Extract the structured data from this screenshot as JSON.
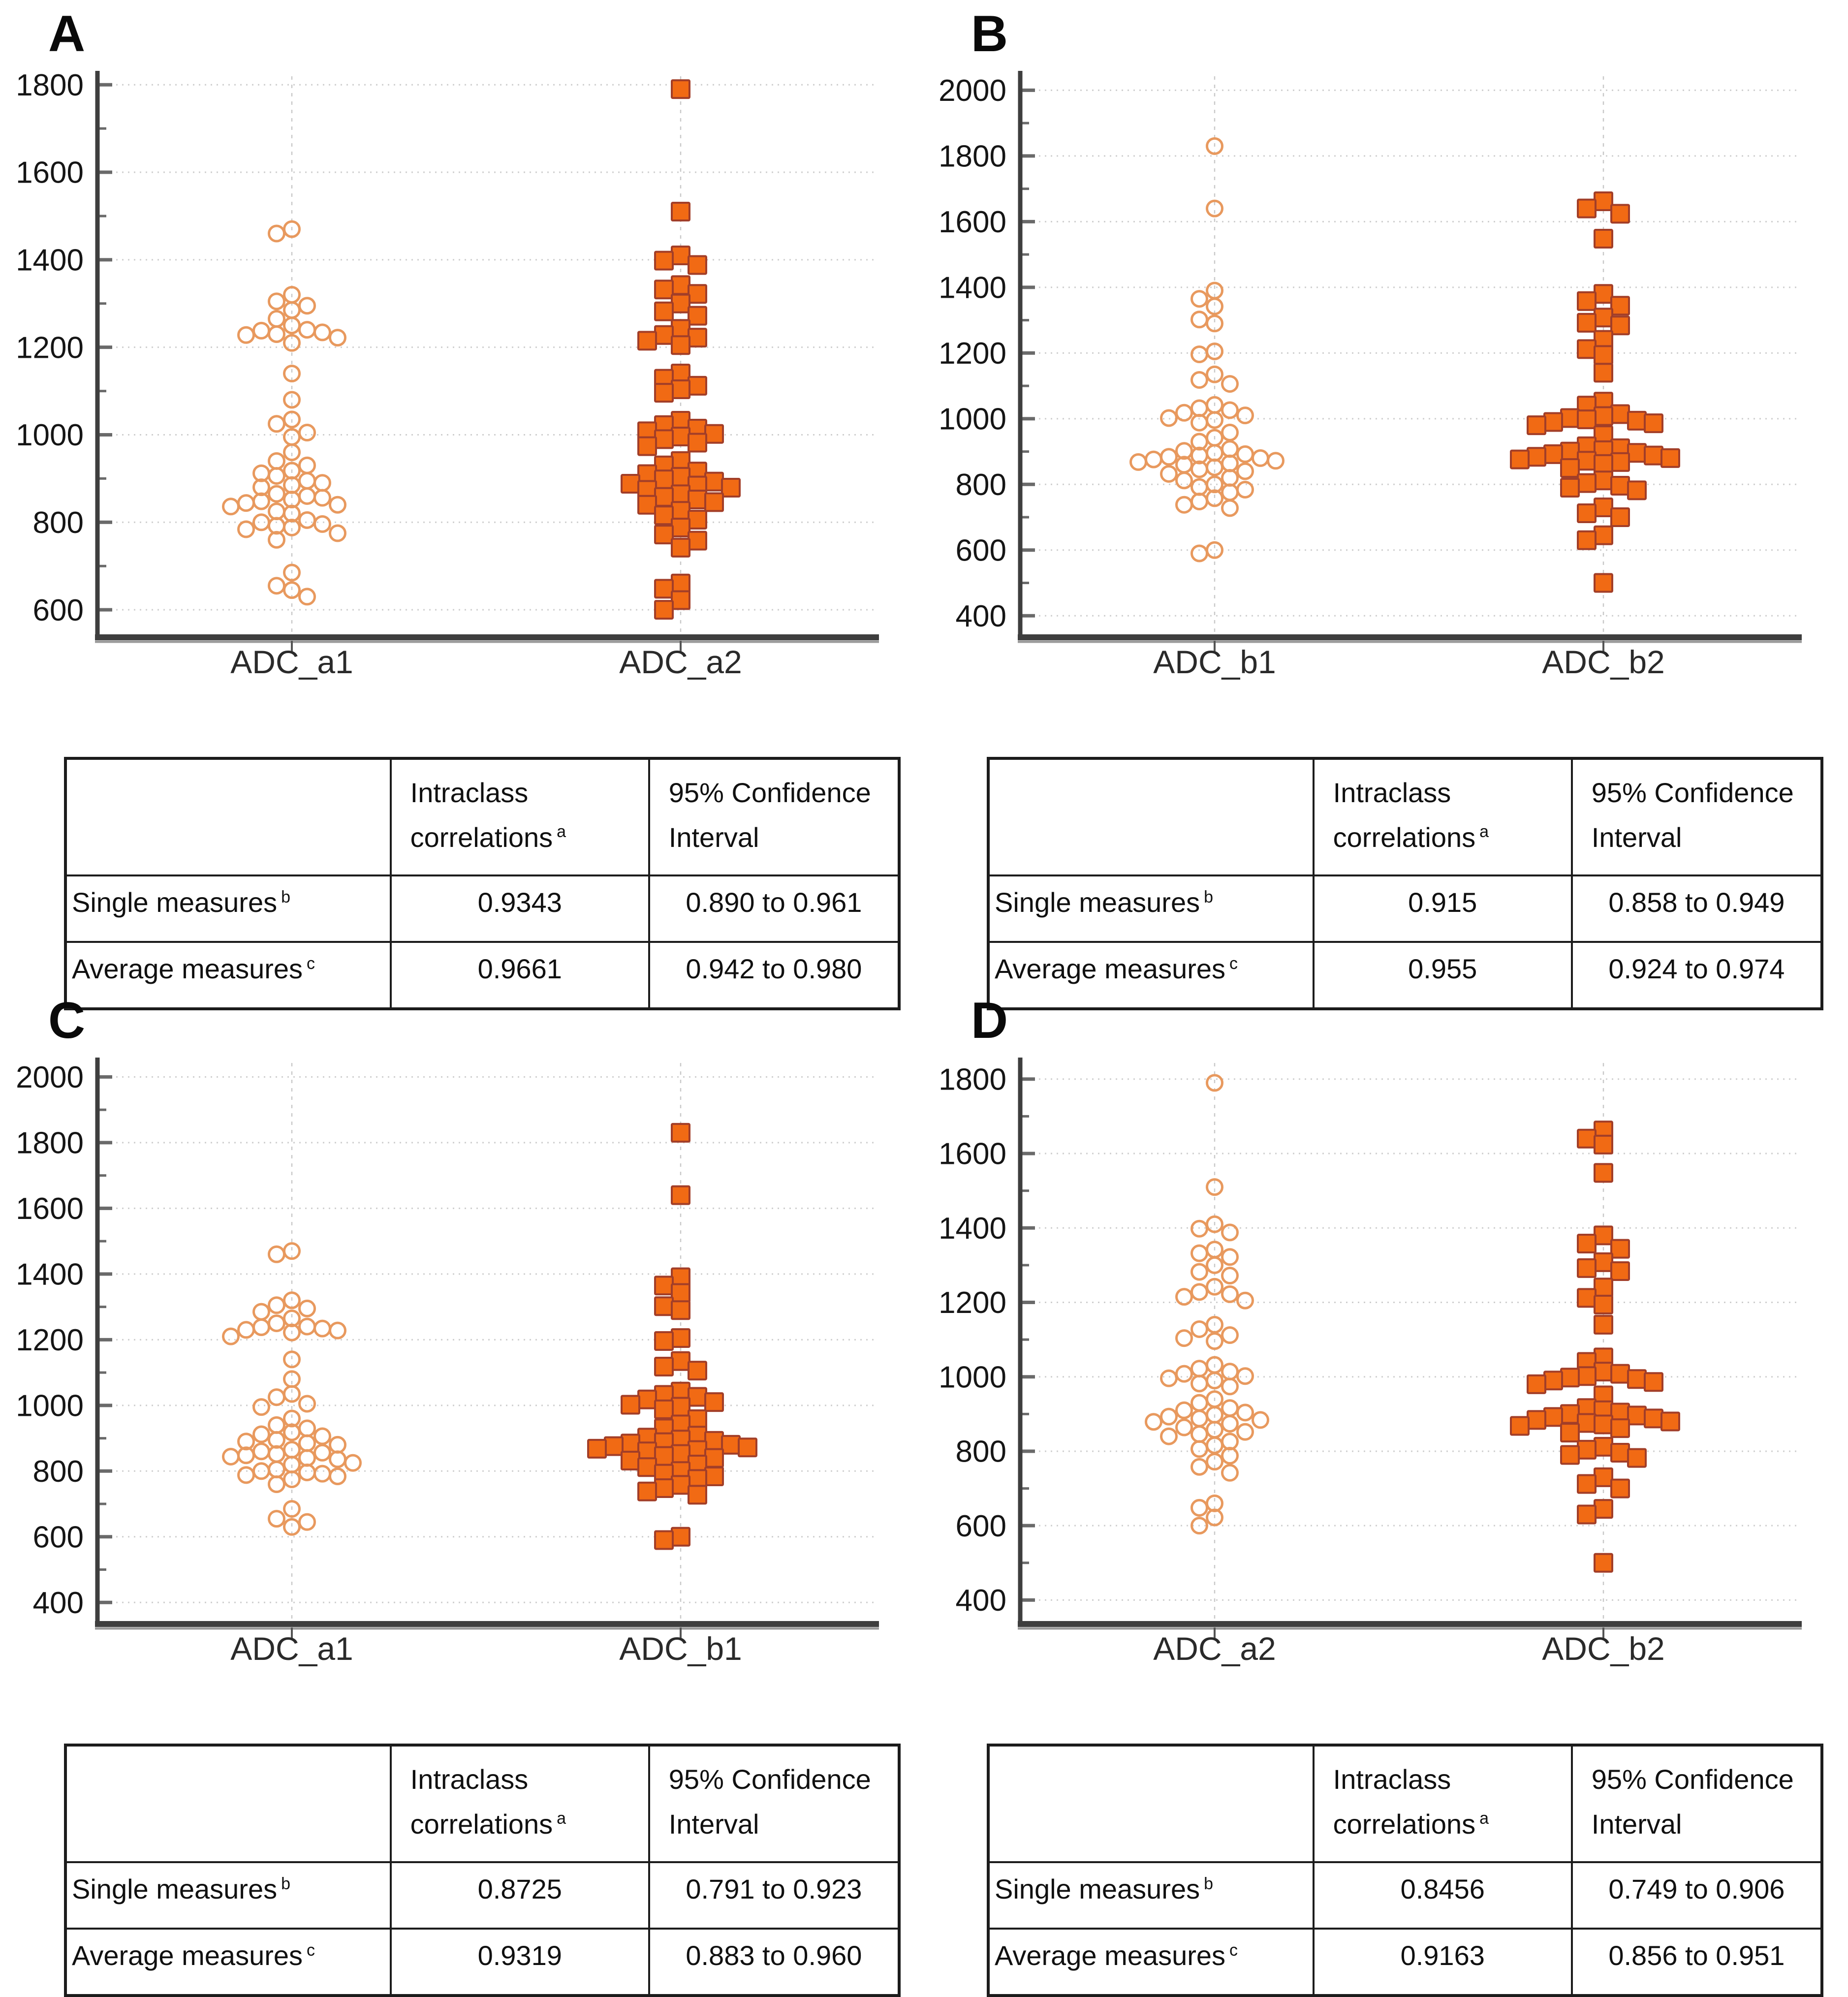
{
  "figure_type": "four-panel beeswarm scatter plots with ICC tables",
  "colors": {
    "circle_stroke": "#E8995E",
    "square_fill": "#F16A14",
    "square_stroke": "#A23E28",
    "grid": "#CFCFCF",
    "guide": "#C9C9C9",
    "axis": "#3E3E3E",
    "tick": "#6A6A6A",
    "tick_label": "#151515",
    "category_label": "#2A2A2A"
  },
  "chart_data": {
    "type": "scatter",
    "subtype": "beeswarm",
    "legend": "none",
    "grid": "dotted horizontal at major ticks, dashed vertical guide at each category",
    "measurements": {
      "ADC_a1": [
        1470,
        1460,
        1320,
        1305,
        1295,
        1285,
        1265,
        1250,
        1240,
        1238,
        1234,
        1230,
        1228,
        1222,
        1210,
        1140,
        1080,
        1035,
        1025,
        1005,
        995,
        960,
        940,
        930,
        918,
        912,
        906,
        895,
        890,
        885,
        880,
        865,
        860,
        856,
        852,
        848,
        844,
        840,
        836,
        825,
        820,
        805,
        800,
        796,
        792,
        788,
        784,
        775,
        760,
        685,
        655,
        645,
        630
      ],
      "ADC_a2": [
        1790,
        1510,
        1410,
        1398,
        1388,
        1342,
        1332,
        1322,
        1300,
        1282,
        1272,
        1242,
        1228,
        1222,
        1215,
        1205,
        1140,
        1128,
        1112,
        1104,
        1096,
        1032,
        1022,
        1014,
        1008,
        1002,
        996,
        990,
        982,
        974,
        940,
        930,
        916,
        910,
        904,
        898,
        893,
        888,
        884,
        879,
        874,
        864,
        858,
        852,
        846,
        840,
        826,
        816,
        806,
        788,
        772,
        758,
        742,
        660,
        648,
        622,
        600
      ],
      "ADC_b1": [
        1830,
        1640,
        1390,
        1365,
        1342,
        1302,
        1290,
        1205,
        1196,
        1135,
        1118,
        1106,
        1042,
        1032,
        1026,
        1018,
        1010,
        1002,
        996,
        988,
        958,
        942,
        930,
        908,
        902,
        896,
        892,
        888,
        884,
        880,
        876,
        872,
        868,
        864,
        860,
        852,
        846,
        840,
        832,
        820,
        812,
        800,
        792,
        784,
        776,
        758,
        748,
        738,
        728,
        600,
        590
      ],
      "ADC_b2": [
        1662,
        1640,
        1624,
        1548,
        1380,
        1358,
        1344,
        1308,
        1292,
        1284,
        1240,
        1212,
        1194,
        1140,
        1052,
        1040,
        1014,
        1008,
        1002,
        998,
        994,
        990,
        986,
        980,
        950,
        916,
        910,
        904,
        900,
        896,
        892,
        888,
        884,
        880,
        876,
        872,
        868,
        862,
        850,
        812,
        804,
        796,
        790,
        782,
        730,
        712,
        700,
        645,
        630,
        500
      ]
    },
    "panels": [
      {
        "letter": "A",
        "categories": [
          "ADC_a1",
          "ADC_a2"
        ],
        "series_keys": [
          "ADC_a1",
          "ADC_a2"
        ],
        "markers": [
          "circle",
          "square"
        ],
        "axis": {
          "domain": [
            545,
            1825
          ],
          "ticks": [
            600,
            800,
            1000,
            1200,
            1400,
            1600,
            1800
          ],
          "minor_step": 100
        },
        "table": {
          "header": {
            "intraclass_line1": "Intraclass",
            "intraclass_line2": "correlations",
            "intraclass_sup": "a",
            "ci_line1": "95% Confidence",
            "ci_line2": "Interval"
          },
          "rows": [
            {
              "label": "Single measures",
              "sup": "b",
              "icc": "0.9343",
              "ci": "0.890 to 0.961"
            },
            {
              "label": "Average measures",
              "sup": "c",
              "icc": "0.9661",
              "ci": "0.942 to 0.980"
            }
          ]
        }
      },
      {
        "letter": "B",
        "categories": [
          "ADC_b1",
          "ADC_b2"
        ],
        "series_keys": [
          "ADC_b1",
          "ADC_b2"
        ],
        "markers": [
          "circle",
          "square"
        ],
        "axis": {
          "domain": [
            345,
            2050
          ],
          "ticks": [
            400,
            600,
            800,
            1000,
            1200,
            1400,
            1600,
            1800,
            2000
          ],
          "minor_step": 100
        },
        "table": {
          "header": {
            "intraclass_line1": "Intraclass",
            "intraclass_line2": "correlations",
            "intraclass_sup": "a",
            "ci_line1": "95% Confidence",
            "ci_line2": "Interval"
          },
          "rows": [
            {
              "label": "Single measures",
              "sup": "b",
              "icc": "0.915",
              "ci": "0.858 to 0.949"
            },
            {
              "label": "Average measures",
              "sup": "c",
              "icc": "0.955",
              "ci": "0.924 to 0.974"
            }
          ]
        }
      },
      {
        "letter": "C",
        "categories": [
          "ADC_a1",
          "ADC_b1"
        ],
        "series_keys": [
          "ADC_a1",
          "ADC_b1"
        ],
        "markers": [
          "circle",
          "square"
        ],
        "axis": {
          "domain": [
            345,
            2050
          ],
          "ticks": [
            400,
            600,
            800,
            1000,
            1200,
            1400,
            1600,
            1800,
            2000
          ],
          "minor_step": 100
        },
        "table": {
          "header": {
            "intraclass_line1": "Intraclass",
            "intraclass_line2": "correlations",
            "intraclass_sup": "a",
            "ci_line1": "95% Confidence",
            "ci_line2": "Interval"
          },
          "rows": [
            {
              "label": "Single measures",
              "sup": "b",
              "icc": "0.8725",
              "ci": "0.791 to 0.923"
            },
            {
              "label": "Average measures",
              "sup": "c",
              "icc": "0.9319",
              "ci": "0.883 to 0.960"
            }
          ]
        }
      },
      {
        "letter": "D",
        "categories": [
          "ADC_a2",
          "ADC_b2"
        ],
        "series_keys": [
          "ADC_a2",
          "ADC_b2"
        ],
        "markers": [
          "circle",
          "square"
        ],
        "axis": {
          "domain": [
            345,
            1850
          ],
          "ticks": [
            400,
            600,
            800,
            1000,
            1200,
            1400,
            1600,
            1800
          ],
          "minor_step": 100
        },
        "table": {
          "header": {
            "intraclass_line1": "Intraclass",
            "intraclass_line2": "correlations",
            "intraclass_sup": "a",
            "ci_line1": "95% Confidence",
            "ci_line2": "Interval"
          },
          "rows": [
            {
              "label": "Single measures",
              "sup": "b",
              "icc": "0.8456",
              "ci": "0.749 to 0.906"
            },
            {
              "label": "Average measures",
              "sup": "c",
              "icc": "0.9163",
              "ci": "0.856 to 0.951"
            }
          ]
        }
      }
    ]
  }
}
